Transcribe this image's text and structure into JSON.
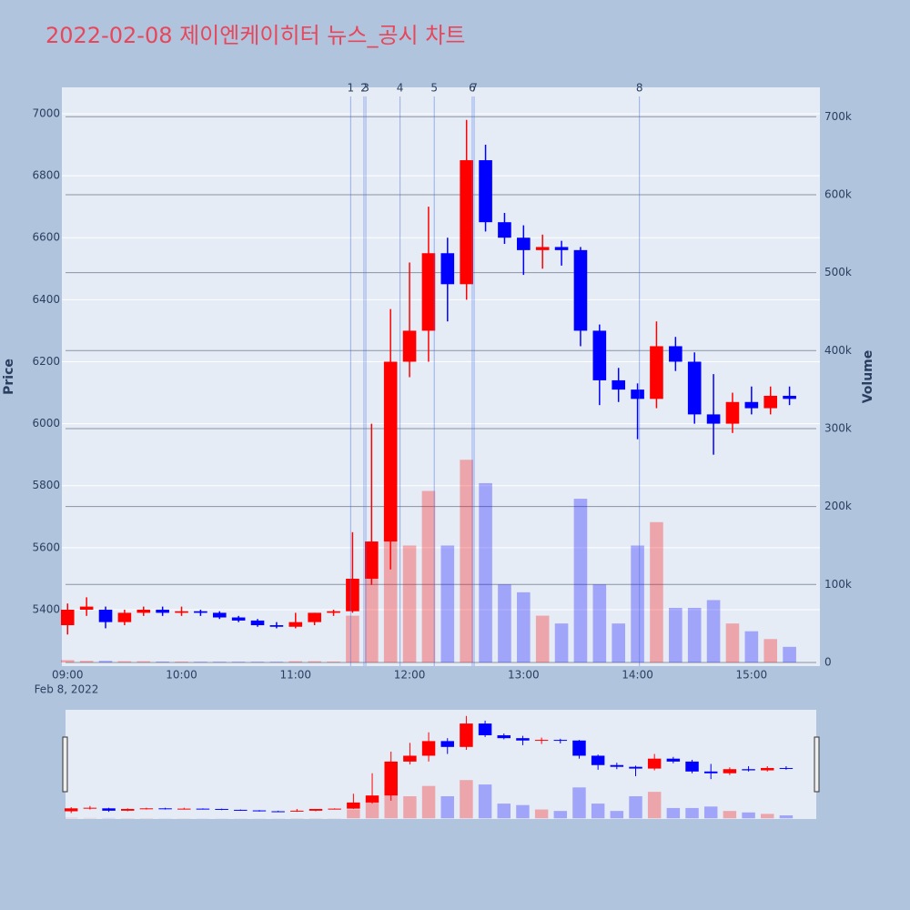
{
  "chart_data": {
    "type": "candlestick",
    "title": "2022-02-08 제이엔케이히터 뉴스_공시 차트",
    "y_title": "Price",
    "y2_title": "Volume",
    "x_date_label": "Feb 8, 2022",
    "up_color": "#ff0000",
    "down_color": "#0000ff",
    "x": [
      "2022-02-08 09:00",
      "2022-02-08 09:10",
      "2022-02-08 09:20",
      "2022-02-08 09:30",
      "2022-02-08 09:40",
      "2022-02-08 09:50",
      "2022-02-08 10:00",
      "2022-02-08 10:10",
      "2022-02-08 10:20",
      "2022-02-08 10:30",
      "2022-02-08 10:40",
      "2022-02-08 10:50",
      "2022-02-08 11:00",
      "2022-02-08 11:10",
      "2022-02-08 11:20",
      "2022-02-08 11:30",
      "2022-02-08 11:40",
      "2022-02-08 11:50",
      "2022-02-08 12:00",
      "2022-02-08 12:10",
      "2022-02-08 12:20",
      "2022-02-08 12:30",
      "2022-02-08 12:40",
      "2022-02-08 12:50",
      "2022-02-08 13:00",
      "2022-02-08 13:10",
      "2022-02-08 13:20",
      "2022-02-08 13:30",
      "2022-02-08 13:40",
      "2022-02-08 13:50",
      "2022-02-08 14:00",
      "2022-02-08 14:10",
      "2022-02-08 14:20",
      "2022-02-08 14:30",
      "2022-02-08 14:40",
      "2022-02-08 14:50",
      "2022-02-08 15:00",
      "2022-02-08 15:10",
      "2022-02-08 15:20"
    ],
    "open": [
      5350,
      5400,
      5400,
      5360,
      5390,
      5400,
      5390,
      5395,
      5390,
      5375,
      5365,
      5350,
      5345,
      5360,
      5390,
      5395,
      5500,
      5620,
      6200,
      6300,
      6550,
      6450,
      6850,
      6650,
      6600,
      6560,
      6570,
      6560,
      6300,
      6140,
      6110,
      6080,
      6250,
      6200,
      6030,
      6000,
      6070,
      6050,
      6090
    ],
    "high": [
      5420,
      5440,
      5410,
      5400,
      5410,
      5410,
      5410,
      5400,
      5395,
      5380,
      5370,
      5360,
      5390,
      5390,
      5400,
      5650,
      6000,
      6370,
      6520,
      6700,
      6600,
      6980,
      6900,
      6680,
      6640,
      6610,
      6590,
      6570,
      6320,
      6180,
      6130,
      6330,
      6280,
      6230,
      6160,
      6100,
      6120,
      6120,
      6120
    ],
    "low": [
      5320,
      5380,
      5340,
      5350,
      5380,
      5380,
      5380,
      5380,
      5370,
      5360,
      5345,
      5340,
      5340,
      5350,
      5380,
      5390,
      5480,
      5530,
      6150,
      6200,
      6330,
      6400,
      6620,
      6580,
      6480,
      6500,
      6510,
      6250,
      6060,
      6070,
      5950,
      6050,
      6170,
      6000,
      5900,
      5970,
      6030,
      6030,
      6060
    ],
    "close": [
      5400,
      5410,
      5360,
      5390,
      5400,
      5390,
      5395,
      5390,
      5375,
      5365,
      5350,
      5345,
      5360,
      5390,
      5395,
      5500,
      5620,
      6200,
      6300,
      6550,
      6450,
      6850,
      6650,
      6600,
      6560,
      6570,
      6560,
      6300,
      6140,
      6110,
      6080,
      6250,
      6200,
      6030,
      6000,
      6070,
      6050,
      6090,
      6080
    ],
    "volume": [
      3000,
      2000,
      2000,
      1500,
      1500,
      1000,
      1000,
      800,
      800,
      800,
      800,
      800,
      1500,
      1500,
      1000,
      60000,
      120000,
      200000,
      150000,
      220000,
      150000,
      260000,
      230000,
      100000,
      90000,
      60000,
      50000,
      210000,
      100000,
      50000,
      150000,
      180000,
      70000,
      70000,
      80000,
      50000,
      40000,
      30000,
      20000
    ],
    "news": [
      {
        "x": "2022-02-08 11:29",
        "label": "1"
      },
      {
        "x": "2022-02-08 11:36",
        "label": "2"
      },
      {
        "x": "2022-02-08 11:37",
        "label": "3"
      },
      {
        "x": "2022-02-08 11:55",
        "label": "4"
      },
      {
        "x": "2022-02-08 12:13",
        "label": "5"
      },
      {
        "x": "2022-02-08 12:33",
        "label": "6"
      },
      {
        "x": "2022-02-08 12:34",
        "label": "7"
      },
      {
        "x": "2022-02-08 14:01",
        "label": "8"
      }
    ],
    "xlim": [
      "2022-02-08 08:57",
      "2022-02-08 15:36"
    ],
    "xticks": [
      {
        "value": "2022-02-08 09:00",
        "label": "09:00"
      },
      {
        "value": "2022-02-08 10:00",
        "label": "10:00"
      },
      {
        "value": "2022-02-08 11:00",
        "label": "11:00"
      },
      {
        "value": "2022-02-08 12:00",
        "label": "12:00"
      },
      {
        "value": "2022-02-08 13:00",
        "label": "13:00"
      },
      {
        "value": "2022-02-08 14:00",
        "label": "14:00"
      },
      {
        "value": "2022-02-08 15:00",
        "label": "15:00"
      }
    ],
    "ylim": [
      5218,
      7085
    ],
    "yticks": [
      5400,
      5600,
      5800,
      6000,
      6200,
      6400,
      6600,
      6800,
      7000
    ],
    "y2lim": [
      -4700,
      737700
    ],
    "y2ticks": [
      0,
      {
        "value": 100000,
        "label": "100k"
      },
      {
        "value": 200000,
        "label": "200k"
      },
      {
        "value": 300000,
        "label": "300k"
      },
      {
        "value": 400000,
        "label": "400k"
      },
      {
        "value": 500000,
        "label": "500k"
      },
      {
        "value": 600000,
        "label": "600k"
      },
      {
        "value": 700000,
        "label": "700k"
      }
    ],
    "grid": true
  }
}
